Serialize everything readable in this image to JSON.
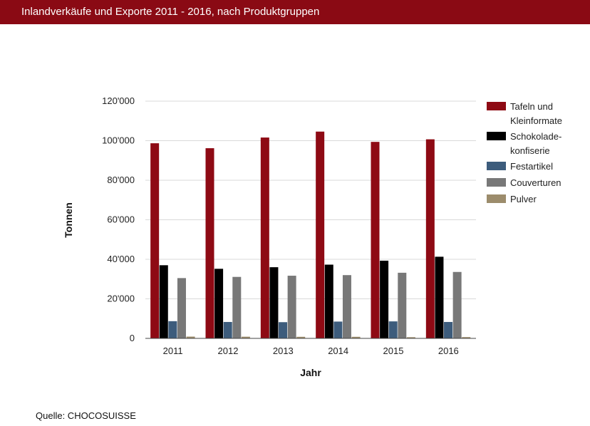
{
  "header": {
    "title": "Inlandverkäufe und Exporte 2011 - 2016, nach Produktgruppen"
  },
  "footer": {
    "source": "Quelle: CHOCOSUISSE"
  },
  "chart_data": {
    "type": "bar",
    "title": "",
    "xlabel": "Jahr",
    "ylabel": "Tonnen",
    "categories": [
      "2011",
      "2012",
      "2013",
      "2014",
      "2015",
      "2016"
    ],
    "ylim": [
      0,
      120000
    ],
    "yticks": [
      {
        "value": 0,
        "label": "0"
      },
      {
        "value": 20000,
        "label": "20'000"
      },
      {
        "value": 40000,
        "label": "40'000"
      },
      {
        "value": 60000,
        "label": "60'000"
      },
      {
        "value": 80000,
        "label": "80'000"
      },
      {
        "value": 100000,
        "label": "100'000"
      },
      {
        "value": 120000,
        "label": "120'000"
      }
    ],
    "grid": true,
    "legend_position": "right",
    "series": [
      {
        "name": [
          "Tafeln und",
          "Kleinformate"
        ],
        "color": "#8e0a14",
        "values": [
          98700,
          96200,
          101600,
          104600,
          99400,
          100700
        ]
      },
      {
        "name": [
          "Schokolade-",
          "konfiserie"
        ],
        "color": "#000000",
        "values": [
          37000,
          35200,
          36000,
          37300,
          39300,
          41300
        ]
      },
      {
        "name": [
          "Festartikel"
        ],
        "color": "#3d5c7c",
        "values": [
          8700,
          8300,
          8200,
          8500,
          8600,
          8300
        ]
      },
      {
        "name": [
          "Couverturen"
        ],
        "color": "#787878",
        "values": [
          30500,
          31100,
          31700,
          32000,
          33200,
          33600
        ]
      },
      {
        "name": [
          "Pulver"
        ],
        "color": "#9c8c6c",
        "values": [
          900,
          850,
          800,
          800,
          600,
          650
        ]
      }
    ]
  }
}
